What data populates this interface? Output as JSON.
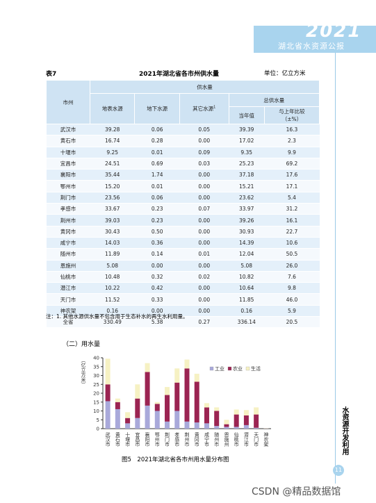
{
  "header": {
    "year": "2021",
    "title": "湖北省水资源公报"
  },
  "table": {
    "label": "表7",
    "title": "2021年湖北省各市州供水量",
    "unit": "单位：亿立方米",
    "head": {
      "region": "市州",
      "supply": "供水量",
      "surface": "地表水源",
      "ground": "地下水源",
      "other": "其它水源",
      "other_sup": "1",
      "total": "总供水量",
      "current": "当年值",
      "compare": "与上年比较",
      "compare_unit": "（±%）"
    },
    "rows": [
      [
        "武汉市",
        "39.28",
        "0.06",
        "0.05",
        "39.39",
        "16.3"
      ],
      [
        "黄石市",
        "16.74",
        "0.28",
        "0.00",
        "17.02",
        "2.3"
      ],
      [
        "十堰市",
        "9.25",
        "0.01",
        "0.09",
        "9.35",
        "9.9"
      ],
      [
        "宜昌市",
        "24.51",
        "0.69",
        "0.03",
        "25.23",
        "69.2"
      ],
      [
        "襄阳市",
        "35.44",
        "1.74",
        "0.00",
        "37.18",
        "17.6"
      ],
      [
        "鄂州市",
        "15.20",
        "0.01",
        "0.00",
        "15.21",
        "17.1"
      ],
      [
        "荆门市",
        "23.56",
        "0.06",
        "0.00",
        "23.62",
        "5.4"
      ],
      [
        "孝感市",
        "33.67",
        "0.23",
        "0.07",
        "33.97",
        "31.2"
      ],
      [
        "荆州市",
        "39.03",
        "0.23",
        "0.00",
        "39.26",
        "16.1"
      ],
      [
        "黄冈市",
        "30.43",
        "0.50",
        "0.00",
        "30.93",
        "22.7"
      ],
      [
        "咸宁市",
        "14.03",
        "0.36",
        "0.00",
        "14.39",
        "10.6"
      ],
      [
        "随州市",
        "11.89",
        "0.14",
        "0.01",
        "12.04",
        "50.5"
      ],
      [
        "恩施州",
        "5.08",
        "0.00",
        "0.00",
        "5.08",
        "26.0"
      ],
      [
        "仙桃市",
        "10.48",
        "0.32",
        "0.02",
        "10.82",
        "7.6"
      ],
      [
        "潜江市",
        "10.22",
        "0.42",
        "0.00",
        "10.64",
        "9.8"
      ],
      [
        "天门市",
        "11.52",
        "0.33",
        "0.00",
        "11.85",
        "46.0"
      ],
      [
        "神农架",
        "0.16",
        "0.00",
        "0.00",
        "0.16",
        "5.9"
      ],
      [
        "全省",
        "330.49",
        "5.38",
        "0.27",
        "336.14",
        "20.5"
      ]
    ],
    "note": "注：1. 其他水源供水量不包含用于生态补水的再生水利用量。"
  },
  "section": "（二）用水量",
  "chart_data": {
    "type": "bar",
    "stacked": true,
    "title": "图5　2021年湖北省各市州用水量分布图",
    "y_label": "（亿立方米）",
    "categories": [
      "武汉市",
      "黄石市",
      "十堰市",
      "宜昌市",
      "襄阳市",
      "鄂州市",
      "荆门市",
      "孝感市",
      "荆州市",
      "黄冈市",
      "咸宁市",
      "随州市",
      "恩施州",
      "仙桃市",
      "潜江市",
      "天门市",
      "神农架"
    ],
    "series": [
      {
        "name": "工业",
        "color": "#a9a9da",
        "values": [
          15.5,
          11,
          3,
          6,
          13,
          10,
          4,
          10,
          4,
          3.5,
          3,
          1.5,
          1,
          1,
          2,
          0.5,
          0.05
        ]
      },
      {
        "name": "农业",
        "color": "#9b2452",
        "values": [
          9.5,
          4,
          3,
          11,
          19,
          4,
          15,
          16,
          30,
          23,
          9,
          8.5,
          1.5,
          7,
          5.5,
          7.5,
          0.05
        ]
      },
      {
        "name": "生活",
        "color": "#f6f1c3",
        "values": [
          14.5,
          2,
          3.3,
          8,
          5,
          1,
          4.5,
          8,
          5,
          4.5,
          2.4,
          2,
          2.5,
          2.8,
          3,
          4,
          0.1
        ]
      }
    ],
    "ylim": [
      0,
      40
    ],
    "yticks": [
      0,
      5,
      10,
      15,
      20,
      25,
      30,
      35,
      40
    ]
  },
  "side": "水资源开发利用",
  "page_number": "11",
  "watermark": "CSDN @精品数据馆"
}
